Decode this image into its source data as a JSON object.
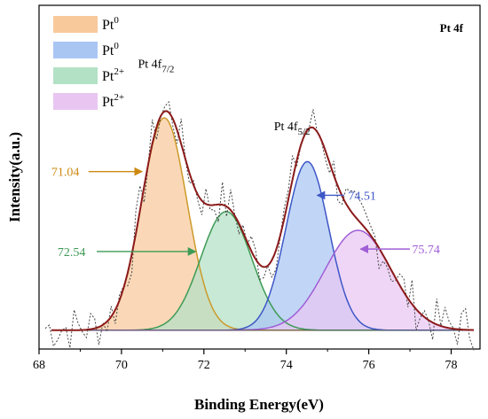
{
  "chart_data": {
    "type": "area",
    "xlabel": "Binding Energy(eV)",
    "ylabel": "Intensity(a.u.)",
    "xlim": [
      68,
      78.7
    ],
    "x_ticks": [
      68,
      70,
      72,
      74,
      76,
      78
    ],
    "y_ticks_labeled": false,
    "baseline": 0.15,
    "corner_label": "Pt 4f",
    "legend": [
      {
        "base": "Pt",
        "sup": "0",
        "color": "#f8c99b"
      },
      {
        "base": "Pt",
        "sup": "0",
        "color": "#a9c6f3"
      },
      {
        "base": "Pt",
        "sup": "2+",
        "color": "#b3e1c6"
      },
      {
        "base": "Pt",
        "sup": "2+",
        "color": "#e9c6f2"
      }
    ],
    "peak_labels": [
      {
        "text": "Pt 4f",
        "sub": "7/2",
        "x": 70.4,
        "y": 2.25
      },
      {
        "text": "Pt 4f",
        "sub": "5/2",
        "x": 73.7,
        "y": 1.75
      }
    ],
    "series": [
      {
        "center": 71.04,
        "height": 1.7,
        "sigma": 0.55,
        "fill": "#f8c99b",
        "stroke": "#cc9a2a"
      },
      {
        "center": 72.54,
        "height": 0.95,
        "sigma": 0.62,
        "fill": "#b3e1c6",
        "stroke": "#3e9a55"
      },
      {
        "center": 74.51,
        "height": 1.35,
        "sigma": 0.52,
        "fill": "#a9c6f3",
        "stroke": "#3d57c7"
      },
      {
        "center": 75.74,
        "height": 0.8,
        "sigma": 0.8,
        "fill": "#e9c6f2",
        "stroke": "#a05ed6"
      }
    ],
    "envelope_color": "#8b1a1a",
    "raw_color": "#444444",
    "annotations": [
      {
        "text": "71.04",
        "color": "#cc8a12",
        "text_x": 68.3,
        "text_y": 1.42,
        "arrow_from_x": 69.2,
        "arrow_to_x": 70.5,
        "arrow_y": 1.42
      },
      {
        "text": "72.54",
        "color": "#3e9a55",
        "text_x": 68.45,
        "text_y": 0.78,
        "arrow_from_x": 69.4,
        "arrow_to_x": 71.8,
        "arrow_y": 0.78
      },
      {
        "text": "74.51",
        "color": "#3d57c7",
        "text_x": 75.5,
        "text_y": 1.23,
        "arrow_from_x": 75.4,
        "arrow_to_x": 74.75,
        "arrow_y": 1.23
      },
      {
        "text": "75.74",
        "color": "#a05ed6",
        "text_x": 77.05,
        "text_y": 0.8,
        "arrow_from_x": 77.0,
        "arrow_to_x": 75.8,
        "arrow_y": 0.8
      }
    ]
  }
}
